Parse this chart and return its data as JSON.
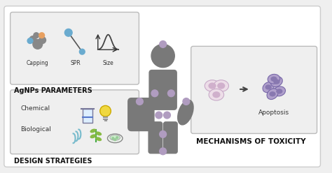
{
  "bg_color": "#efefef",
  "outer_border_color": "#cccccc",
  "box_color": "#ffffff",
  "box_border_color": "#bbbbbb",
  "title": "AgNPs PARAMETERS",
  "title2": "DESIGN STRATEGIES",
  "title3": "MECHANISMS OF TOXICITY",
  "label_capping": "Capping",
  "label_spr": "SPR",
  "label_size": "Size",
  "label_chemical": "Chemical",
  "label_biological": "Biological",
  "label_apoptosis": "Apoptosis",
  "human_color": "#797979",
  "dot_color": "#b09cc0",
  "text_bold_color": "#111111",
  "blue_color": "#6aabcf",
  "orange_color": "#e8a060",
  "gray_dark": "#555555",
  "cell_pink": "#eddde8",
  "cell_pink_nuc": "#d0b0cc",
  "cell_purple": "#b0a0cc",
  "cell_purple_nuc": "#8878b0",
  "green1": "#88bb44",
  "green2": "#44aa44"
}
